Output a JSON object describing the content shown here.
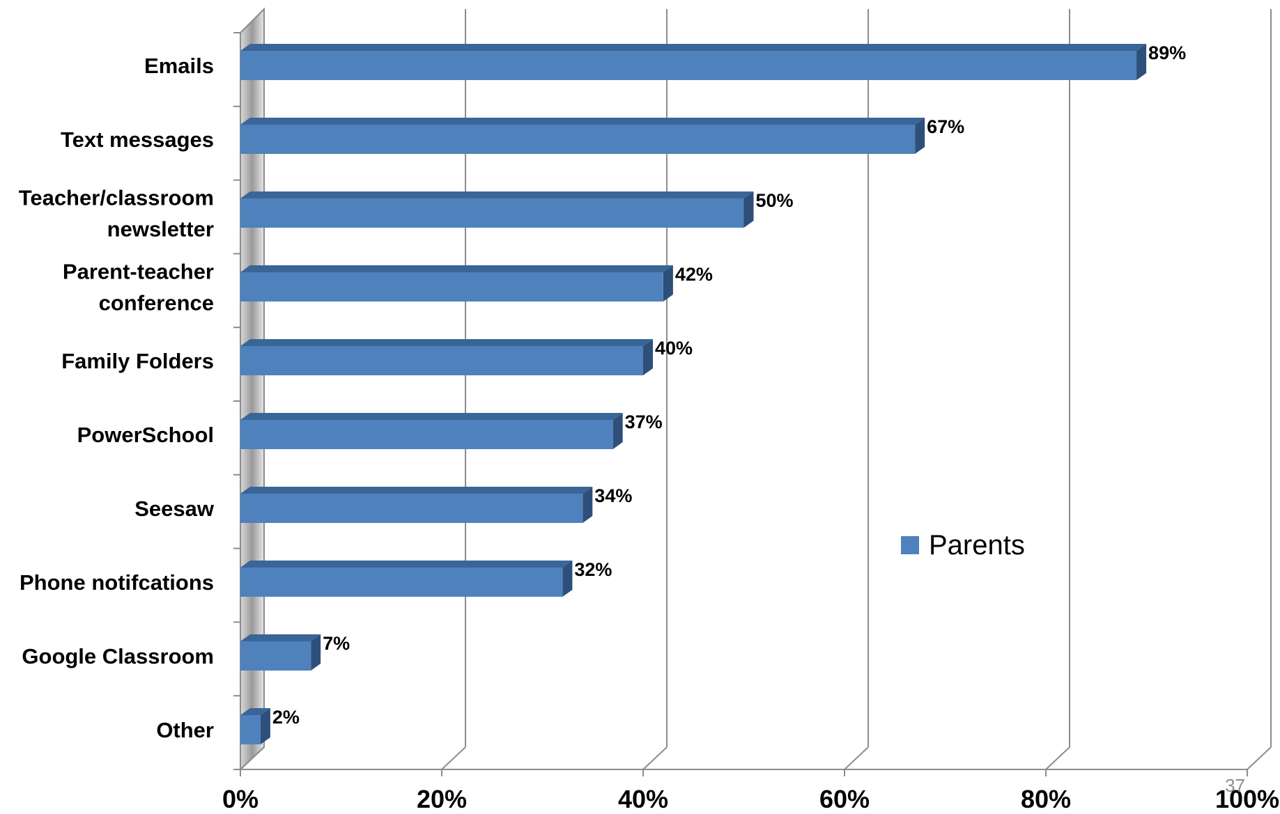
{
  "chart_data": {
    "type": "bar",
    "orientation": "horizontal",
    "three_d": true,
    "categories": [
      [
        "Emails"
      ],
      [
        "Text messages"
      ],
      [
        "Teacher/classroom",
        "newsletter"
      ],
      [
        "Parent-teacher",
        "conference"
      ],
      [
        "Family Folders"
      ],
      [
        "PowerSchool"
      ],
      [
        "Seesaw"
      ],
      [
        "Phone notifcations"
      ],
      [
        "Google Classroom"
      ],
      [
        "Other"
      ]
    ],
    "series": [
      {
        "name": "Parents",
        "color": "#4F81BD",
        "values": [
          89,
          67,
          50,
          42,
          40,
          37,
          34,
          32,
          7,
          2
        ],
        "data_labels": [
          "89%",
          "67%",
          "50%",
          "42%",
          "40%",
          "37%",
          "34%",
          "32%",
          "7%",
          "2%"
        ]
      }
    ],
    "xlim": [
      0,
      100
    ],
    "x_ticks": [
      "0%",
      "20%",
      "40%",
      "60%",
      "80%",
      "100%"
    ],
    "grid": true,
    "legend_position": "right"
  },
  "page_number": "37"
}
